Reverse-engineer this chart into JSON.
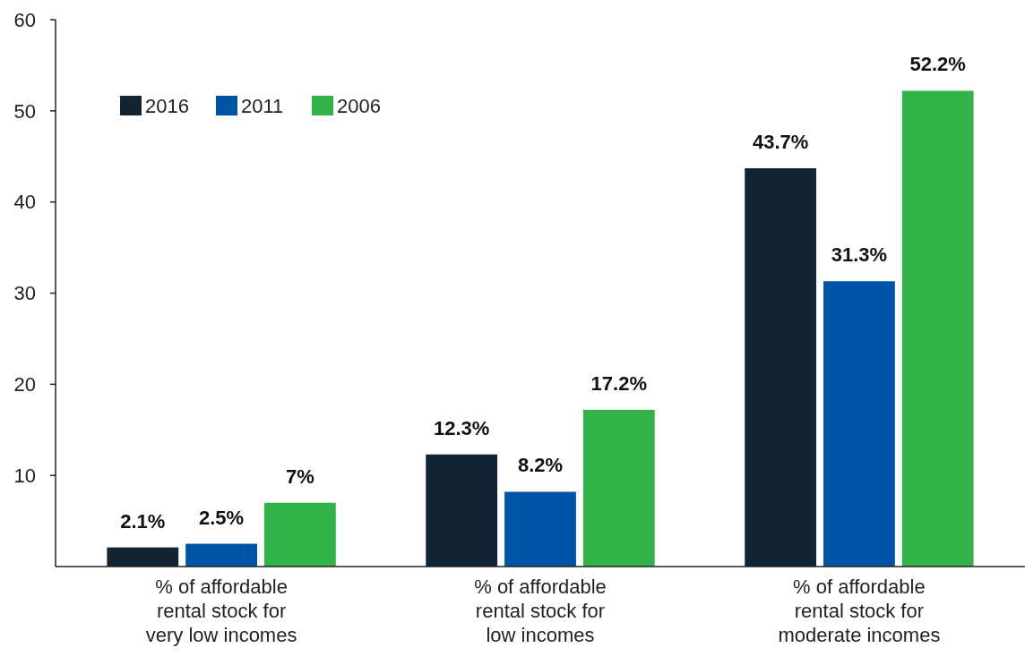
{
  "chart_data": {
    "type": "bar",
    "categories": [
      "% of affordable rental stock for very low incomes",
      "% of affordable rental stock for low incomes",
      "% of affordable rental stock for moderate incomes"
    ],
    "series": [
      {
        "name": "2016",
        "color": "#132533",
        "values": [
          2.1,
          12.3,
          43.7
        ],
        "value_labels": [
          "2.1%",
          "12.3%",
          "43.7%"
        ]
      },
      {
        "name": "2011",
        "color": "#0054a6",
        "values": [
          2.5,
          8.2,
          31.3
        ],
        "value_labels": [
          "2.5%",
          "8.2%",
          "31.3%"
        ]
      },
      {
        "name": "2006",
        "color": "#33b24a",
        "values": [
          7,
          17.2,
          52.2
        ],
        "value_labels": [
          "7%",
          "17.2%",
          "52.2%"
        ]
      }
    ],
    "ylim": [
      0,
      60
    ],
    "yticks": [
      10,
      20,
      30,
      40,
      50,
      60
    ],
    "grid": false,
    "legend": "top left"
  }
}
